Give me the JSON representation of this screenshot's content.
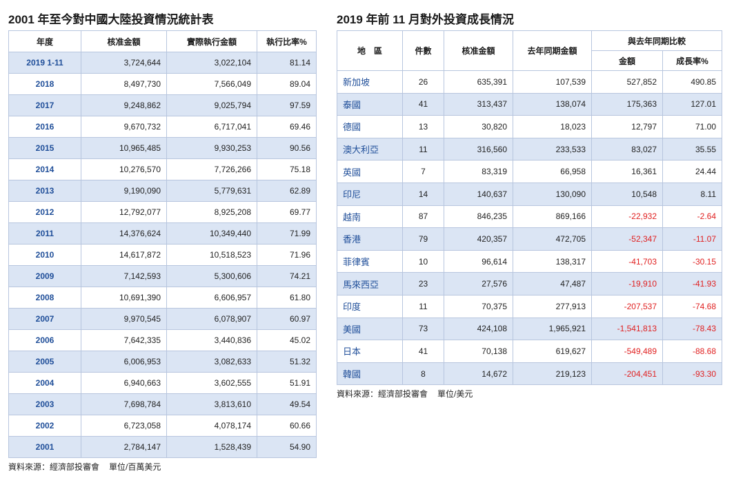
{
  "left": {
    "title": "2001 年至今對中國大陸投資情況統計表",
    "headers": [
      "年度",
      "核准金額",
      "實際執行金額",
      "執行比率%"
    ],
    "rows": [
      [
        "2019 1-11",
        "3,724,644",
        "3,022,104",
        "81.14"
      ],
      [
        "2018",
        "8,497,730",
        "7,566,049",
        "89.04"
      ],
      [
        "2017",
        "9,248,862",
        "9,025,794",
        "97.59"
      ],
      [
        "2016",
        "9,670,732",
        "6,717,041",
        "69.46"
      ],
      [
        "2015",
        "10,965,485",
        "9,930,253",
        "90.56"
      ],
      [
        "2014",
        "10,276,570",
        "7,726,266",
        "75.18"
      ],
      [
        "2013",
        "9,190,090",
        "5,779,631",
        "62.89"
      ],
      [
        "2012",
        "12,792,077",
        "8,925,208",
        "69.77"
      ],
      [
        "2011",
        "14,376,624",
        "10,349,440",
        "71.99"
      ],
      [
        "2010",
        "14,617,872",
        "10,518,523",
        "71.96"
      ],
      [
        "2009",
        "7,142,593",
        "5,300,606",
        "74.21"
      ],
      [
        "2008",
        "10,691,390",
        "6,606,957",
        "61.80"
      ],
      [
        "2007",
        "9,970,545",
        "6,078,907",
        "60.97"
      ],
      [
        "2006",
        "7,642,335",
        "3,440,836",
        "45.02"
      ],
      [
        "2005",
        "6,006,953",
        "3,082,633",
        "51.32"
      ],
      [
        "2004",
        "6,940,663",
        "3,602,555",
        "51.91"
      ],
      [
        "2003",
        "7,698,784",
        "3,813,610",
        "49.54"
      ],
      [
        "2002",
        "6,723,058",
        "4,078,174",
        "60.66"
      ],
      [
        "2001",
        "2,784,147",
        "1,528,439",
        "54.90"
      ]
    ],
    "source": "資料來源：經濟部投審會",
    "unit": "單位/百萬美元"
  },
  "right": {
    "title": "2019 年前 11 月對外投資成長情況",
    "headers": {
      "region": "地　區",
      "count": "件數",
      "approved": "核准金額",
      "last_year": "去年同期金額",
      "compare_group": "與去年同期比較",
      "amount": "金額",
      "growth": "成長率%"
    },
    "rows": [
      [
        "新加坡",
        "26",
        "635,391",
        "107,539",
        "527,852",
        "490.85"
      ],
      [
        "泰國",
        "41",
        "313,437",
        "138,074",
        "175,363",
        "127.01"
      ],
      [
        "德國",
        "13",
        "30,820",
        "18,023",
        "12,797",
        "71.00"
      ],
      [
        "澳大利亞",
        "11",
        "316,560",
        "233,533",
        "83,027",
        "35.55"
      ],
      [
        "英國",
        "7",
        "83,319",
        "66,958",
        "16,361",
        "24.44"
      ],
      [
        "印尼",
        "14",
        "140,637",
        "130,090",
        "10,548",
        "8.11"
      ],
      [
        "越南",
        "87",
        "846,235",
        "869,166",
        "-22,932",
        "-2.64"
      ],
      [
        "香港",
        "79",
        "420,357",
        "472,705",
        "-52,347",
        "-11.07"
      ],
      [
        "菲律賓",
        "10",
        "96,614",
        "138,317",
        "-41,703",
        "-30.15"
      ],
      [
        "馬來西亞",
        "23",
        "27,576",
        "47,487",
        "-19,910",
        "-41.93"
      ],
      [
        "印度",
        "11",
        "70,375",
        "277,913",
        "-207,537",
        "-74.68"
      ],
      [
        "美國",
        "73",
        "424,108",
        "1,965,921",
        "-1,541,813",
        "-78.43"
      ],
      [
        "日本",
        "41",
        "70,138",
        "619,627",
        "-549,489",
        "-88.68"
      ],
      [
        "韓國",
        "8",
        "14,672",
        "219,123",
        "-204,451",
        "-93.30"
      ]
    ],
    "source": "資料來源：經濟部投審會",
    "unit": "單位/美元"
  },
  "colors": {
    "stripe": "#dbe5f4",
    "border": "#b7c5de",
    "label_blue": "#1f4e99",
    "negative_red": "#e02020"
  }
}
